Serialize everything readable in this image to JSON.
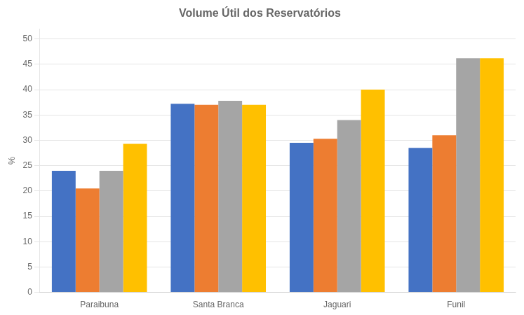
{
  "chart_data": {
    "type": "bar",
    "title": "Volume Útil dos Reservatórios",
    "categories": [
      "Paraibuna",
      "Santa Branca",
      "Jaguari",
      "Funil"
    ],
    "series": [
      {
        "color": "#4472C4",
        "values": [
          24.0,
          37.2,
          29.5,
          28.5
        ]
      },
      {
        "color": "#ED7D31",
        "values": [
          20.5,
          37.0,
          30.3,
          31.0
        ]
      },
      {
        "color": "#A5A5A5",
        "values": [
          24.0,
          37.8,
          34.0,
          46.2
        ]
      },
      {
        "color": "#FFC000",
        "values": [
          29.3,
          37.0,
          40.0,
          46.2
        ]
      }
    ],
    "ylabel": "%",
    "ylim": [
      0,
      52
    ],
    "yticks": [
      0,
      5,
      10,
      15,
      20,
      25,
      30,
      35,
      40,
      45,
      50
    ],
    "grid": true
  }
}
